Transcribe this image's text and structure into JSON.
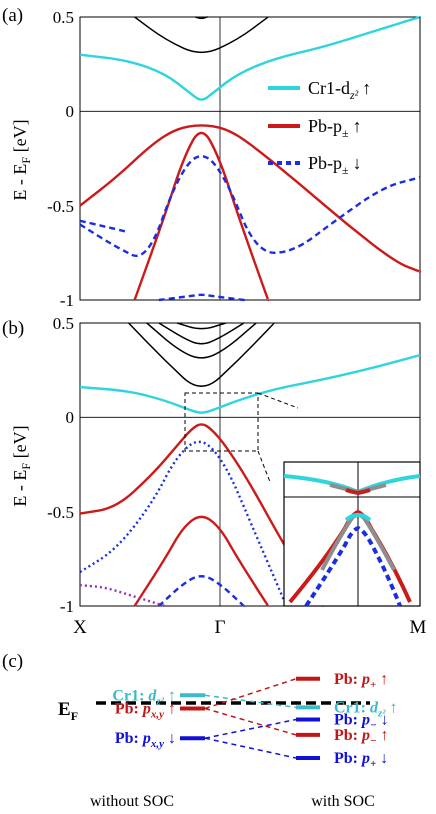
{
  "chart_data": [
    {
      "panel_label": "(a)",
      "type": "line",
      "ylabel": "E - E_F [eV]",
      "ylim": [
        -1,
        0.5
      ],
      "yticks": [
        "0.5",
        "0",
        "-0.5",
        "-1"
      ],
      "xlim": [
        -1,
        1.8
      ],
      "kpoints": [
        "X",
        "Γ",
        "M"
      ],
      "legend": [
        {
          "text": "Cr1-d",
          "sub": "z²",
          "arrow": "↑",
          "color": "#2fd4dc",
          "style": "solid"
        },
        {
          "text": "Pb-p",
          "sub": "±",
          "arrow": "↑",
          "color": "#cc1a1a",
          "style": "solid"
        },
        {
          "text": "Pb-p",
          "sub": "±",
          "arrow": "↓",
          "color": "#1a2ee0",
          "style": "dotted"
        }
      ],
      "series": [
        {
          "id": "cr-dz2-up",
          "color": "#2fd4dc",
          "dash": "",
          "x": [
            -1,
            -0.6,
            -0.3,
            -0.1,
            0,
            0.1,
            0.3,
            0.6,
            1,
            1.4,
            1.8
          ],
          "y": [
            0.3,
            0.27,
            0.2,
            0.1,
            0.05,
            0.1,
            0.2,
            0.28,
            0.34,
            0.42,
            0.5
          ]
        },
        {
          "id": "pb-p-up-1",
          "color": "#cc1a1a",
          "dash": "",
          "x": [
            -1,
            -0.7,
            -0.4,
            -0.2,
            0,
            0.2,
            0.4,
            0.8,
            1.2,
            1.6,
            1.8
          ],
          "y": [
            -0.5,
            -0.35,
            -0.17,
            -0.09,
            -0.07,
            -0.09,
            -0.17,
            -0.38,
            -0.6,
            -0.8,
            -0.85
          ]
        },
        {
          "id": "pb-p-up-2",
          "color": "#cc1a1a",
          "dash": "",
          "x": [
            -0.55,
            -0.3,
            -0.15,
            0,
            0.15,
            0.3,
            0.55
          ],
          "y": [
            -1,
            -0.55,
            -0.25,
            -0.07,
            -0.25,
            -0.55,
            -1
          ]
        },
        {
          "id": "pb-p-dn-1",
          "color": "#1a2ee0",
          "dash": "6,4",
          "x": [
            -1,
            -0.7,
            -0.45,
            -0.2,
            0,
            0.2,
            0.45,
            0.75,
            1.1,
            1.5,
            1.8
          ],
          "y": [
            -0.6,
            -0.72,
            -0.8,
            -0.35,
            -0.2,
            -0.35,
            -0.75,
            -0.75,
            -0.58,
            -0.4,
            -0.35
          ]
        },
        {
          "id": "pb-p-dn-2",
          "color": "#1a2ee0",
          "dash": "6,4",
          "x": [
            -1,
            -0.8,
            -0.6
          ],
          "y": [
            -0.58,
            -0.61,
            -0.64
          ]
        },
        {
          "id": "pb-p-dn-3",
          "color": "#1a2ee0",
          "dash": "6,4",
          "x": [
            -0.35,
            -0.1,
            0,
            0.1,
            0.35
          ],
          "y": [
            -1,
            -0.98,
            -0.97,
            -0.98,
            -1
          ]
        },
        {
          "id": "cb-1",
          "color": "#000000",
          "dash": "",
          "x": [
            -0.55,
            -0.3,
            0,
            0.3,
            0.55
          ],
          "y": [
            0.5,
            0.38,
            0.29,
            0.38,
            0.5
          ]
        },
        {
          "id": "cb-2",
          "color": "#000000",
          "dash": "",
          "x": [
            -0.05,
            0,
            0.05
          ],
          "y": [
            0.5,
            0.49,
            0.5
          ]
        }
      ]
    },
    {
      "panel_label": "(b)",
      "type": "line",
      "ylabel": "E - E_F [eV]",
      "ylim": [
        -1,
        0.5
      ],
      "yticks": [
        "0.5",
        "0",
        "-0.5",
        "-1"
      ],
      "xlim": [
        -1,
        1.8
      ],
      "kpoints": [
        "X",
        "Γ",
        "M"
      ],
      "series": [
        {
          "id": "cr-dz2-up",
          "color": "#2fd4dc",
          "dash": "",
          "x": [
            -1,
            -0.6,
            -0.3,
            -0.1,
            0,
            0.1,
            0.3,
            0.6,
            1,
            1.4,
            1.8
          ],
          "y": [
            0.16,
            0.14,
            0.09,
            0.04,
            0.02,
            0.04,
            0.09,
            0.15,
            0.2,
            0.26,
            0.33
          ]
        },
        {
          "id": "pb-p-up-1",
          "color": "#cc1a1a",
          "dash": "",
          "x": [
            -1,
            -0.7,
            -0.4,
            -0.2,
            -0.08,
            0,
            0.08,
            0.2,
            0.4,
            0.7,
            1.0
          ],
          "y": [
            -0.51,
            -0.48,
            -0.3,
            -0.15,
            -0.06,
            -0.03,
            -0.06,
            -0.15,
            -0.35,
            -0.7,
            -1
          ]
        },
        {
          "id": "pb-p-up-2",
          "color": "#cc1a1a",
          "dash": "",
          "x": [
            -0.55,
            -0.3,
            -0.15,
            0,
            0.15,
            0.3,
            0.55
          ],
          "y": [
            -1,
            -0.75,
            -0.58,
            -0.51,
            -0.58,
            -0.75,
            -1
          ]
        },
        {
          "id": "pb-p-dn-1",
          "color": "#1a2ee0",
          "dash": "2,3",
          "x": [
            -1,
            -0.7,
            -0.4,
            -0.2,
            0,
            0.2,
            0.4,
            0.7
          ],
          "y": [
            -0.82,
            -0.7,
            -0.45,
            -0.2,
            -0.1,
            -0.25,
            -0.55,
            -1
          ]
        },
        {
          "id": "pb-p-dn-2",
          "color": "#1a2ee0",
          "dash": "6,4",
          "x": [
            -0.35,
            -0.15,
            0,
            0.15,
            0.35
          ],
          "y": [
            -1,
            -0.88,
            -0.83,
            -0.88,
            -1
          ]
        },
        {
          "id": "mix-1",
          "color": "#8a3ab0",
          "dash": "2,3",
          "x": [
            -1,
            -0.8,
            -0.6,
            -0.4,
            -0.3
          ],
          "y": [
            -0.89,
            -0.9,
            -0.94,
            -0.98,
            -1
          ]
        },
        {
          "id": "cb-1",
          "color": "#000000",
          "dash": "",
          "x": [
            -0.6,
            -0.3,
            0,
            0.3,
            0.6
          ],
          "y": [
            0.5,
            0.3,
            0.12,
            0.3,
            0.5
          ]
        },
        {
          "id": "cb-2",
          "color": "#000000",
          "dash": "",
          "x": [
            -0.45,
            -0.2,
            0,
            0.2,
            0.45
          ],
          "y": [
            0.5,
            0.36,
            0.3,
            0.36,
            0.5
          ]
        },
        {
          "id": "cb-3",
          "color": "#000000",
          "dash": "",
          "x": [
            -0.35,
            -0.15,
            0,
            0.15,
            0.35
          ],
          "y": [
            0.5,
            0.42,
            0.38,
            0.42,
            0.5
          ]
        },
        {
          "id": "cb-4",
          "color": "#000000",
          "dash": "",
          "x": [
            -0.2,
            0,
            0.2
          ],
          "y": [
            0.5,
            0.46,
            0.5
          ]
        }
      ]
    },
    {
      "panel_label": "(c)",
      "type": "diagram",
      "ef_label": "E",
      "ef_sub": "F",
      "left_title": "without SOC",
      "right_title": "with SOC",
      "left_levels": [
        {
          "id": "l-cr",
          "atom": "Cr1",
          "orb": "d",
          "sub": "z²",
          "arrow": "↑",
          "color": "#3bbac8",
          "energy": 0.35
        },
        {
          "id": "l-pb-up",
          "atom": "Pb",
          "orb": "p",
          "sub": "x,y",
          "arrow": "↑",
          "color": "#c21616",
          "energy": -0.25
        },
        {
          "id": "l-pb-dn",
          "atom": "Pb",
          "orb": "p",
          "sub": "x,y",
          "arrow": "↓",
          "color": "#1010d8",
          "energy": -1.6
        }
      ],
      "right_levels": [
        {
          "id": "r-pb-pplus-up",
          "atom": "Pb",
          "orb": "p",
          "sub": "+",
          "arrow": "↑",
          "color": "#c21616",
          "energy": 1.1
        },
        {
          "id": "r-cr",
          "atom": "Cr1",
          "orb": "d",
          "sub": "z²",
          "arrow": "↑",
          "color": "#3bbac8",
          "energy": -0.2
        },
        {
          "id": "r-pb-pminus-dn",
          "atom": "Pb",
          "orb": "p",
          "sub": "−",
          "arrow": "↓",
          "color": "#1010d8",
          "energy": -0.75
        },
        {
          "id": "r-pb-pminus-up",
          "atom": "Pb",
          "orb": "p",
          "sub": "−",
          "arrow": "↑",
          "color": "#c21616",
          "energy": -1.45
        },
        {
          "id": "r-pb-pplus-dn",
          "atom": "Pb",
          "orb": "p",
          "sub": "+",
          "arrow": "↓",
          "color": "#1010d8",
          "energy": -2.5
        }
      ]
    }
  ]
}
